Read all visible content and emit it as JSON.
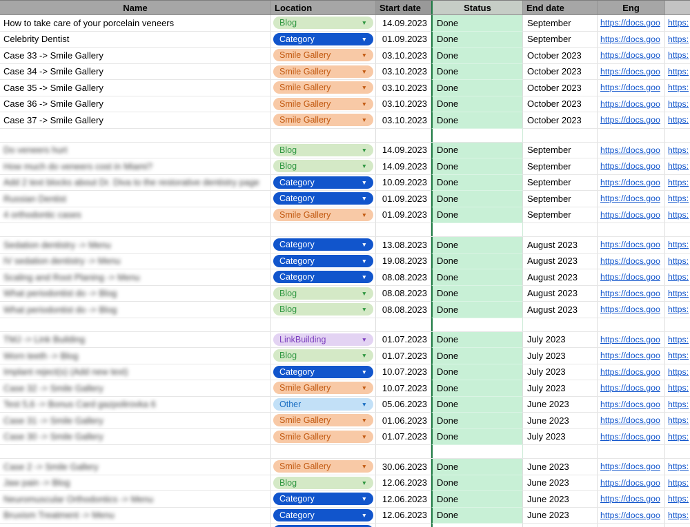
{
  "header": {
    "columns": [
      {
        "label": "Name"
      },
      {
        "label": "Location"
      },
      {
        "label": "Start date"
      },
      {
        "label": "Status"
      },
      {
        "label": "End date"
      },
      {
        "label": "Eng"
      },
      {
        "label": ""
      }
    ]
  },
  "colors": {
    "header_bg": "#a6a6a6",
    "header_bg_start": "#999999",
    "header_bg_status": "#c6cdc6",
    "status_fill": "#c8f0d6",
    "status_column_border": "#1c7a42",
    "link_color": "#1155cc"
  },
  "chip_styles": {
    "Blog": {
      "bg": "#d4e9c6",
      "fg": "#2e9640"
    },
    "Category": {
      "bg": "#1155cc",
      "fg": "#ffffff"
    },
    "Smile Gallery": {
      "bg": "#f8c9a6",
      "fg": "#c25a12"
    },
    "LinkBuilding": {
      "bg": "#e3d3f3",
      "fg": "#7c3fbe"
    },
    "Other": {
      "bg": "#c2e0f7",
      "fg": "#1b6ec2"
    }
  },
  "links": {
    "eng": "https://docs.goo",
    "extra": "https:"
  },
  "rows": [
    {
      "type": "data",
      "name": "How to take care of your porcelain veneers",
      "blurred": false,
      "location": "Blog",
      "start": "14.09.2023",
      "status": "Done",
      "end": "September"
    },
    {
      "type": "data",
      "name": "Celebrity Dentist",
      "blurred": false,
      "location": "Category",
      "start": "01.09.2023",
      "status": "Done",
      "end": "September"
    },
    {
      "type": "data",
      "name": "Case 33 -> Smile Gallery",
      "blurred": false,
      "location": "Smile Gallery",
      "start": "03.10.2023",
      "status": "Done",
      "end": "October 2023"
    },
    {
      "type": "data",
      "name": "Case 34 -> Smile Gallery",
      "blurred": false,
      "location": "Smile Gallery",
      "start": "03.10.2023",
      "status": "Done",
      "end": "October 2023"
    },
    {
      "type": "data",
      "name": "Case 35 -> Smile Gallery",
      "blurred": false,
      "location": "Smile Gallery",
      "start": "03.10.2023",
      "status": "Done",
      "end": "October 2023"
    },
    {
      "type": "data",
      "name": "Case 36 -> Smile Gallery",
      "blurred": false,
      "location": "Smile Gallery",
      "start": "03.10.2023",
      "status": "Done",
      "end": "October 2023"
    },
    {
      "type": "data",
      "name": "Case 37 -> Smile Gallery",
      "blurred": false,
      "location": "Smile Gallery",
      "start": "03.10.2023",
      "status": "Done",
      "end": "October 2023"
    },
    {
      "type": "empty"
    },
    {
      "type": "data",
      "name": "Do veneers hurt",
      "blurred": true,
      "location": "Blog",
      "start": "14.09.2023",
      "status": "Done",
      "end": "September"
    },
    {
      "type": "data",
      "name": "How much do veneers cost in Miami?",
      "blurred": true,
      "location": "Blog",
      "start": "14.09.2023",
      "status": "Done",
      "end": "September"
    },
    {
      "type": "data",
      "name": "Add 2 text blocks about Dr. Diva to the restorative dentistry page",
      "blurred": true,
      "location": "Category",
      "start": "10.09.2023",
      "status": "Done",
      "end": "September"
    },
    {
      "type": "data",
      "name": "Russian Dentist",
      "blurred": true,
      "location": "Category",
      "start": "01.09.2023",
      "status": "Done",
      "end": "September"
    },
    {
      "type": "data",
      "name": "4 orthodontic cases",
      "blurred": true,
      "location": "Smile Gallery",
      "start": "01.09.2023",
      "status": "Done",
      "end": "September"
    },
    {
      "type": "empty"
    },
    {
      "type": "data",
      "name": "Sedation dentistry -> Menu",
      "blurred": true,
      "location": "Category",
      "start": "13.08.2023",
      "status": "Done",
      "end": "August 2023"
    },
    {
      "type": "data",
      "name": "IV sedation dentistry -> Menu",
      "blurred": true,
      "location": "Category",
      "start": "19.08.2023",
      "status": "Done",
      "end": "August 2023"
    },
    {
      "type": "data",
      "name": "Scaling and Root Planing -> Menu",
      "blurred": true,
      "location": "Category",
      "start": "08.08.2023",
      "status": "Done",
      "end": "August 2023"
    },
    {
      "type": "data",
      "name": "What periodontist do -> Blog",
      "blurred": true,
      "location": "Blog",
      "start": "08.08.2023",
      "status": "Done",
      "end": "August 2023"
    },
    {
      "type": "data",
      "name": "What periodontist do -> Blog",
      "blurred": true,
      "location": "Blog",
      "start": "08.08.2023",
      "status": "Done",
      "end": "August 2023"
    },
    {
      "type": "empty"
    },
    {
      "type": "data",
      "name": "TMJ -> Link Building",
      "blurred": true,
      "location": "LinkBuilding",
      "start": "01.07.2023",
      "status": "Done",
      "end": "July 2023"
    },
    {
      "type": "data",
      "name": "Worn teeth -> Blog",
      "blurred": true,
      "location": "Blog",
      "start": "01.07.2023",
      "status": "Done",
      "end": "July 2023"
    },
    {
      "type": "data",
      "name": "Implant reject(s) (Add new text)",
      "blurred": true,
      "location": "Category",
      "start": "10.07.2023",
      "status": "Done",
      "end": "July 2023"
    },
    {
      "type": "data",
      "name": "Case 32 -> Smile Gallery",
      "blurred": true,
      "location": "Smile Gallery",
      "start": "10.07.2023",
      "status": "Done",
      "end": "July 2023"
    },
    {
      "type": "data",
      "name": "Test 5,6 -> Bonus Card gazpolirovka 6",
      "blurred": true,
      "location": "Other",
      "start": "05.06.2023",
      "status": "Done",
      "end": "June 2023"
    },
    {
      "type": "data",
      "name": "Case 31 -> Smile Gallery",
      "blurred": true,
      "location": "Smile Gallery",
      "start": "01.06.2023",
      "status": "Done",
      "end": "June 2023"
    },
    {
      "type": "data",
      "name": "Case 30 -> Smile Gallery",
      "blurred": true,
      "location": "Smile Gallery",
      "start": "01.07.2023",
      "status": "Done",
      "end": "July 2023"
    },
    {
      "type": "empty"
    },
    {
      "type": "data",
      "name": "Case 2 -> Smile Gallery",
      "blurred": true,
      "location": "Smile Gallery",
      "start": "30.06.2023",
      "status": "Done",
      "end": "June 2023"
    },
    {
      "type": "data",
      "name": "Jaw pain -> Blog",
      "blurred": true,
      "location": "Blog",
      "start": "12.06.2023",
      "status": "Done",
      "end": "June 2023"
    },
    {
      "type": "data",
      "name": "Neuromuscular Orthodontics -> Menu",
      "blurred": true,
      "location": "Category",
      "start": "12.06.2023",
      "status": "Done",
      "end": "June 2023"
    },
    {
      "type": "data",
      "name": "Bruxism Treatment -> Menu",
      "blurred": true,
      "location": "Category",
      "start": "12.06.2023",
      "status": "Done",
      "end": "June 2023"
    },
    {
      "type": "data",
      "name": "",
      "blurred": false,
      "location": "Category",
      "start": "",
      "status": "",
      "end": ""
    }
  ]
}
